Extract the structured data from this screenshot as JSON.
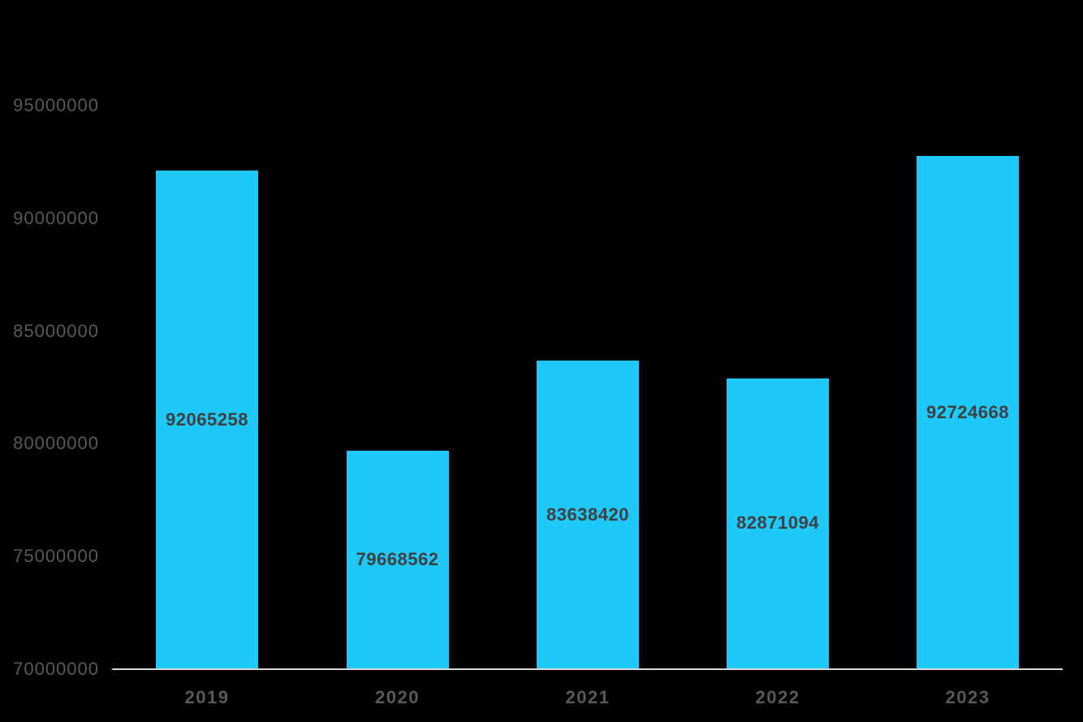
{
  "chart_data": {
    "type": "bar",
    "title": "",
    "xlabel": "",
    "ylabel": "",
    "categories": [
      "2019",
      "2020",
      "2021",
      "2022",
      "2023"
    ],
    "values": [
      92065258,
      79668562,
      83638420,
      82871094,
      92724668
    ],
    "data_labels": [
      "92065258",
      "79668562",
      "83638420",
      "82871094",
      "92724668"
    ],
    "data_label_position": "inside-center",
    "yticks": [
      70000000,
      75000000,
      80000000,
      85000000,
      90000000,
      95000000
    ],
    "ytick_labels": [
      "70000000",
      "75000000",
      "80000000",
      "85000000",
      "90000000",
      "95000000"
    ],
    "ylim": [
      70000000,
      95700000
    ],
    "grid": false,
    "legend": false,
    "colors": {
      "bar": "#1EC9FA",
      "background": "#000000",
      "axis_line": "#D9D9D9",
      "tick_label": "#595959",
      "data_label": "#3F3F3F"
    }
  }
}
